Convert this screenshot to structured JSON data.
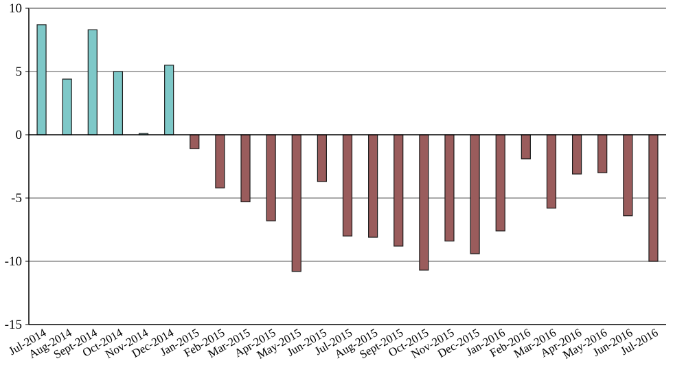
{
  "chart_data": {
    "type": "bar",
    "title": "",
    "xlabel": "",
    "ylabel": "",
    "ylim": [
      -15,
      10
    ],
    "yticks": [
      10,
      5,
      0,
      -5,
      -10,
      -15
    ],
    "grid": true,
    "legend": "none",
    "categories": [
      "Jul-2014",
      "Aug-2014",
      "Sept-2014",
      "Oct-2014",
      "Nov-2014",
      "Dec-2014",
      "Jan-2015",
      "Feb-2015",
      "Mar-2015",
      "Apr-2015",
      "May-2015",
      "Jun-2015",
      "Jul-2015",
      "Aug-2015",
      "Sept-2015",
      "Oct-2015",
      "Nov-2015",
      "Dec-2015",
      "Jan-2016",
      "Feb-2016",
      "Mar-2016",
      "Apr-2016",
      "May-2016",
      "Jun-2016",
      "Jul-2016"
    ],
    "values": [
      8.7,
      4.4,
      8.3,
      5.0,
      0.1,
      5.5,
      -1.1,
      -4.2,
      -5.3,
      -6.8,
      -10.8,
      -3.7,
      -8.0,
      -8.1,
      -8.8,
      -10.7,
      -8.4,
      -9.4,
      -7.6,
      -1.9,
      -5.8,
      -3.1,
      -3.0,
      -6.4,
      -10.0
    ],
    "colors": {
      "positive": "#7ec8c8",
      "negative": "#9a5c5c",
      "bar_stroke": "#1a1a1a",
      "grid": "#8c8c8c",
      "axis": "#000000"
    }
  }
}
